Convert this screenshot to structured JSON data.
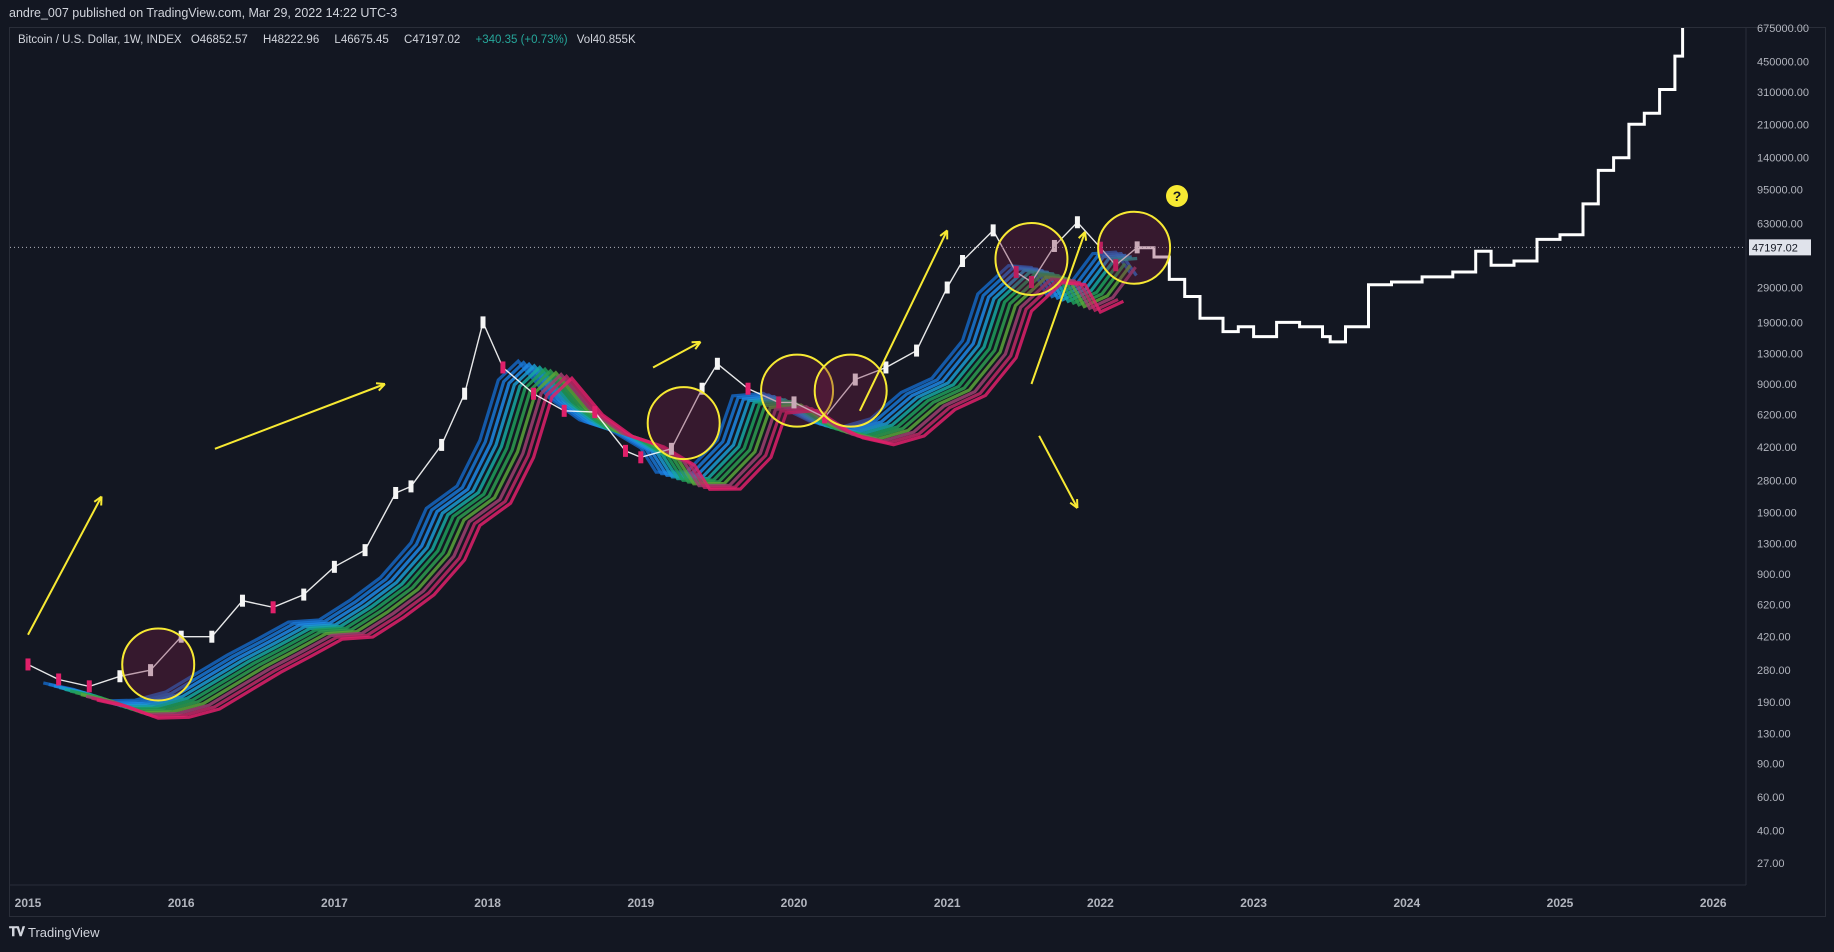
{
  "header": {
    "publisher_line": "andre_007 published on TradingView.com, Mar 29, 2022 14:22 UTC-3"
  },
  "legend": {
    "symbol": "Bitcoin / U.S. Dollar, 1W, INDEX",
    "open_label": "O",
    "open": "46852.57",
    "high_label": "H",
    "high": "48222.96",
    "low_label": "L",
    "low": "46675.45",
    "close_label": "C",
    "close": "47197.02",
    "change": "+340.35 (+0.73%)",
    "vol_label": "Vol",
    "vol": "40.855K"
  },
  "footer": {
    "brand": "TradingView",
    "logo_icon": "tradingview-logo-icon"
  },
  "colors": {
    "background": "#131722",
    "axis_text": "#b2b5be",
    "annotation": "#f7e933",
    "projection": "#ffffff",
    "ribbon_low": "#1e6fd9",
    "ribbon_mid": "#1f9e5a",
    "ribbon_high": "#e0206a"
  },
  "chart_data": {
    "type": "line",
    "title": "Bitcoin / U.S. Dollar, 1W, INDEX",
    "y_scale": "log",
    "y_tick_labels": [
      "675000.00",
      "450000.00",
      "310000.00",
      "210000.00",
      "140000.00",
      "95000.00",
      "63000.00",
      "47197.02",
      "29000.00",
      "19000.00",
      "13000.00",
      "9000.00",
      "6200.00",
      "4200.00",
      "2800.00",
      "1900.00",
      "1300.00",
      "900.00",
      "620.00",
      "420.00",
      "280.00",
      "190.00",
      "130.00",
      "90.00",
      "60.00",
      "40.00",
      "27.00"
    ],
    "x_tick_labels": [
      "2015",
      "2016",
      "2017",
      "2018",
      "2019",
      "2020",
      "2021",
      "2022",
      "2023",
      "2024",
      "2025",
      "2026"
    ],
    "ylim": [
      24,
      700000
    ],
    "last_price": 47197.02,
    "series": [
      {
        "kind": "price",
        "x": [
          2015.0,
          2015.2,
          2015.4,
          2015.6,
          2015.8,
          2016.0,
          2016.2,
          2016.4,
          2016.6,
          2016.8,
          2017.0,
          2017.2,
          2017.4,
          2017.5,
          2017.7,
          2017.85,
          2017.97,
          2018.1,
          2018.3,
          2018.5,
          2018.7,
          2018.9,
          2019.0,
          2019.2,
          2019.4,
          2019.5,
          2019.7,
          2019.9,
          2020.0,
          2020.2,
          2020.4,
          2020.6,
          2020.8,
          2021.0,
          2021.1,
          2021.3,
          2021.45,
          2021.55,
          2021.7,
          2021.85,
          2022.0,
          2022.1,
          2022.24
        ],
        "y": [
          300,
          250,
          230,
          260,
          280,
          420,
          420,
          650,
          600,
          700,
          980,
          1200,
          2400,
          2600,
          4300,
          8000,
          19000,
          11000,
          8000,
          6500,
          6400,
          4000,
          3700,
          4100,
          8500,
          11500,
          8500,
          7200,
          7200,
          6000,
          9500,
          11000,
          13500,
          29000,
          40000,
          58000,
          35000,
          31000,
          48000,
          64000,
          47000,
          38000,
          47197
        ]
      },
      {
        "kind": "projection",
        "x": [
          2022.24,
          2022.35,
          2022.45,
          2022.55,
          2022.65,
          2022.8,
          2022.9,
          2023.0,
          2023.15,
          2023.3,
          2023.45,
          2023.5,
          2023.6,
          2023.75,
          2023.9,
          2024.1,
          2024.3,
          2024.45,
          2024.55,
          2024.7,
          2024.85,
          2025.0,
          2025.15,
          2025.25,
          2025.35,
          2025.45,
          2025.55,
          2025.65,
          2025.75,
          2025.8
        ],
        "y": [
          47000,
          42000,
          32000,
          26000,
          20000,
          17000,
          18000,
          16000,
          19000,
          18000,
          16000,
          15000,
          18000,
          30000,
          31000,
          33000,
          35000,
          45000,
          38000,
          40000,
          52000,
          55000,
          80000,
          120000,
          140000,
          210000,
          240000,
          320000,
          480000,
          675000
        ]
      }
    ],
    "annotations": {
      "circles": [
        [
          2015.85,
          300
        ],
        [
          2019.28,
          5600
        ],
        [
          2020.02,
          8300
        ],
        [
          2020.37,
          8300
        ],
        [
          2021.55,
          41000
        ],
        [
          2022.22,
          47000
        ]
      ],
      "arrows": [
        [
          2015.0,
          430,
          2015.48,
          2300
        ],
        [
          2016.22,
          4100,
          2017.33,
          9000
        ],
        [
          2019.08,
          11000,
          2019.39,
          15000
        ],
        [
          2020.43,
          6500,
          2021.0,
          58000
        ],
        [
          2021.6,
          4800,
          2021.85,
          2000
        ],
        [
          2021.55,
          9000,
          2021.9,
          57000
        ]
      ],
      "question_mark": [
        2022.5,
        88000
      ]
    }
  }
}
